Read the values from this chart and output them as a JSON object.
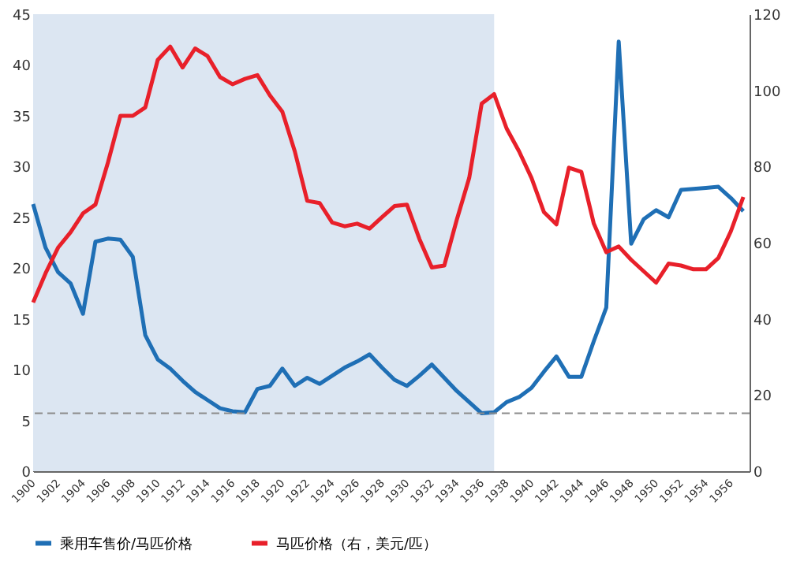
{
  "chart_data": {
    "type": "line",
    "x": [
      1900,
      1901,
      1902,
      1903,
      1904,
      1905,
      1906,
      1907,
      1908,
      1909,
      1910,
      1911,
      1912,
      1913,
      1914,
      1915,
      1916,
      1917,
      1918,
      1919,
      1920,
      1921,
      1922,
      1923,
      1924,
      1925,
      1926,
      1927,
      1928,
      1929,
      1930,
      1931,
      1932,
      1933,
      1934,
      1935,
      1936,
      1937,
      1938,
      1939,
      1940,
      1941,
      1942,
      1943,
      1944,
      1945,
      1946,
      1947,
      1948,
      1949,
      1950,
      1951,
      1952,
      1953,
      1954,
      1955,
      1956,
      1957
    ],
    "series": [
      {
        "name": "乘用车售价/马匹价格",
        "color": "#1f6fb5",
        "values": [
          26.3,
          22,
          19.6,
          18.5,
          15.5,
          22.6,
          22.9,
          22.8,
          21.1,
          13.4,
          11,
          10.1,
          8.9,
          7.8,
          7,
          6.2,
          5.9,
          5.8,
          8.1,
          8.4,
          10.1,
          8.4,
          9.2,
          8.6,
          9.4,
          10.2,
          10.8,
          11.5,
          10.2,
          9,
          8.4,
          9.4,
          10.5,
          9.2,
          7.9,
          6.8,
          5.7,
          5.8,
          6.8,
          7.3,
          8.2,
          9.8,
          11.3,
          9.3,
          9.3,
          12.8,
          16.1,
          42.3,
          22.4,
          24.8,
          25.7,
          25,
          27.7,
          27.8,
          27.9,
          28,
          26.9,
          25.6
        ]
      },
      {
        "name": "马匹价格（右，美元/匹）",
        "color": "#e8202a",
        "axis": "y2",
        "values": [
          44.3,
          52,
          58.7,
          62.7,
          67.7,
          70,
          81,
          93.3,
          93.3,
          95.5,
          108,
          111.5,
          106,
          111,
          109,
          103.5,
          101.6,
          103,
          104,
          98.7,
          94.4,
          84,
          71,
          70.4,
          65.3,
          64.3,
          65,
          63.7,
          66.7,
          69.6,
          70,
          61,
          53.5,
          54,
          66,
          77,
          96.5,
          99,
          90,
          84,
          77,
          68,
          64.8,
          79.7,
          78.6,
          65,
          57.5,
          59,
          55.5,
          52.5,
          49.5,
          54.5,
          54,
          53,
          53,
          56,
          63,
          72
        ]
      }
    ],
    "xlim": [
      1900,
      1957.5
    ],
    "xticks": [
      1900,
      1902,
      1904,
      1906,
      1908,
      1910,
      1912,
      1914,
      1916,
      1918,
      1920,
      1922,
      1924,
      1926,
      1928,
      1930,
      1932,
      1934,
      1936,
      1938,
      1940,
      1942,
      1944,
      1946,
      1948,
      1950,
      1952,
      1954,
      1956
    ],
    "ylim": [
      0,
      45
    ],
    "yticks": [
      0,
      5,
      10,
      15,
      20,
      25,
      30,
      35,
      40,
      45
    ],
    "y2lim": [
      0,
      120
    ],
    "y2ticks": [
      0,
      20,
      40,
      60,
      80,
      100,
      120
    ],
    "bands": [
      {
        "axis": "x",
        "from": 1900,
        "to": 1937,
        "color": "#dce6f2"
      }
    ],
    "ref_lines": [
      {
        "axis": "y",
        "value": 5.7,
        "color": "#8c8c8c",
        "line_style": "dashed"
      }
    ],
    "legend": "bottom",
    "grid": false,
    "marker": "none",
    "line_style": "solid"
  }
}
